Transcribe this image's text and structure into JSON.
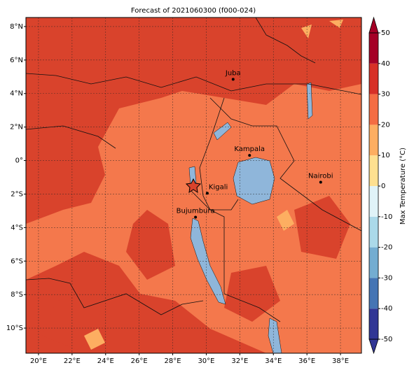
{
  "chart_data": {
    "type": "map",
    "title": "Forecast of 2021060300 (f000-024)",
    "xlim": [
      19.25,
      39.25
    ],
    "ylim": [
      -11.5,
      8.54
    ],
    "xticks": [
      {
        "value": 20,
        "label": "20°E"
      },
      {
        "value": 22,
        "label": "22°E"
      },
      {
        "value": 24,
        "label": "24°E"
      },
      {
        "value": 26,
        "label": "26°E"
      },
      {
        "value": 28,
        "label": "28°E"
      },
      {
        "value": 30,
        "label": "30°E"
      },
      {
        "value": 32,
        "label": "32°E"
      },
      {
        "value": 34,
        "label": "34°E"
      },
      {
        "value": 36,
        "label": "36°E"
      },
      {
        "value": 38,
        "label": "38°E"
      }
    ],
    "yticks": [
      {
        "value": 8,
        "label": "8°N"
      },
      {
        "value": 6,
        "label": "6°N"
      },
      {
        "value": 4,
        "label": "4°N"
      },
      {
        "value": 2,
        "label": "2°N"
      },
      {
        "value": 0,
        "label": "0°"
      },
      {
        "value": -2,
        "label": "2°S"
      },
      {
        "value": -4,
        "label": "4°S"
      },
      {
        "value": -6,
        "label": "6°S"
      },
      {
        "value": -8,
        "label": "8°S"
      },
      {
        "value": -10,
        "label": "10°S"
      }
    ],
    "grid": true,
    "places": [
      {
        "name": "Juba",
        "lon": 31.6,
        "lat": 4.85
      },
      {
        "name": "Kampala",
        "lon": 32.58,
        "lat": 0.31
      },
      {
        "name": "Nairobi",
        "lon": 36.82,
        "lat": -1.29
      },
      {
        "name": "Kigali",
        "lon": 30.06,
        "lat": -1.95
      },
      {
        "name": "Bujumbura",
        "lon": 29.36,
        "lat": -3.38
      }
    ],
    "colorbar": {
      "label": "Max Temperature (°C)",
      "clim": [
        -50,
        50
      ],
      "ticks": [
        -50,
        -40,
        -30,
        -20,
        -10,
        0,
        10,
        20,
        30,
        40,
        50
      ],
      "colors": [
        "#313695",
        "#4575b4",
        "#74add1",
        "#abd9e9",
        "#e0f3f8",
        "#fee090",
        "#fdae61",
        "#f46d43",
        "#d73027",
        "#a50026"
      ]
    }
  }
}
